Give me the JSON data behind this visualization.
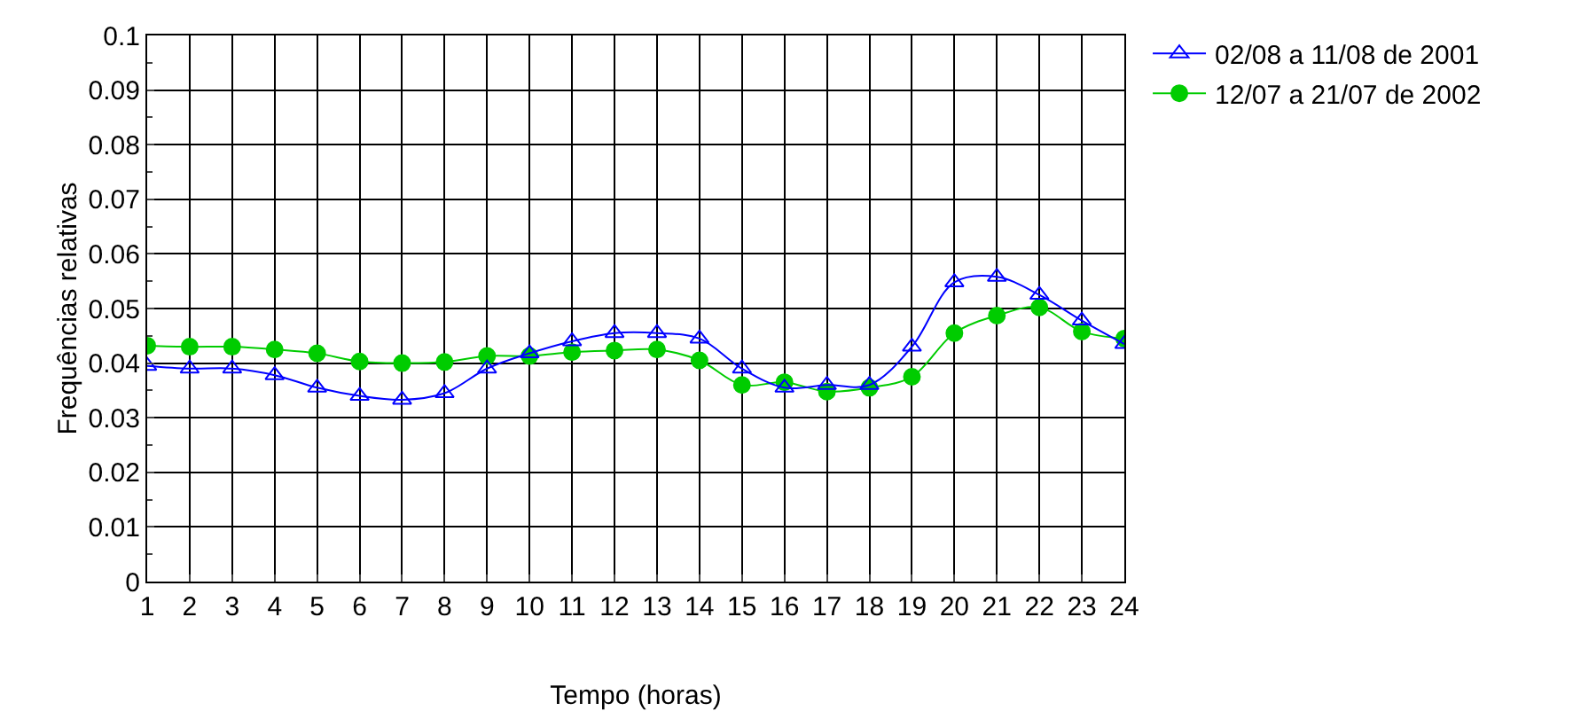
{
  "chart_data": {
    "type": "line",
    "xlabel": "Tempo (horas)",
    "ylabel": "Frequências relativas",
    "x": [
      1,
      2,
      3,
      4,
      5,
      6,
      7,
      8,
      9,
      10,
      11,
      12,
      13,
      14,
      15,
      16,
      17,
      18,
      19,
      20,
      21,
      22,
      23,
      24
    ],
    "series": [
      {
        "name": "02/08 a 11/08 de 2001",
        "color": "#0000ff",
        "marker": "triangle",
        "values": [
          0.0395,
          0.039,
          0.039,
          0.0378,
          0.0355,
          0.034,
          0.0333,
          0.0345,
          0.039,
          0.0418,
          0.044,
          0.0455,
          0.0455,
          0.0445,
          0.039,
          0.0355,
          0.036,
          0.036,
          0.043,
          0.0548,
          0.0558,
          0.0525,
          0.0478,
          0.0435
        ]
      },
      {
        "name": "12/07 a 21/07 de 2002",
        "color": "#00cc00",
        "marker": "circle",
        "values": [
          0.0432,
          0.043,
          0.043,
          0.0425,
          0.0418,
          0.0403,
          0.04,
          0.0402,
          0.0413,
          0.0413,
          0.042,
          0.0423,
          0.0425,
          0.0405,
          0.036,
          0.0365,
          0.0348,
          0.0355,
          0.0375,
          0.0455,
          0.0487,
          0.0502,
          0.0458,
          0.0445
        ]
      }
    ],
    "xlim": [
      1,
      24
    ],
    "xticks": [
      1,
      2,
      3,
      4,
      5,
      6,
      7,
      8,
      9,
      10,
      11,
      12,
      13,
      14,
      15,
      16,
      17,
      18,
      19,
      20,
      21,
      22,
      23,
      24
    ],
    "ylim": [
      0,
      0.1
    ],
    "yticks": [
      0,
      0.01,
      0.02,
      0.03,
      0.04,
      0.05,
      0.06,
      0.07,
      0.08,
      0.09,
      0.1
    ],
    "grid": true,
    "legend": "top right",
    "line_style": "solid"
  }
}
